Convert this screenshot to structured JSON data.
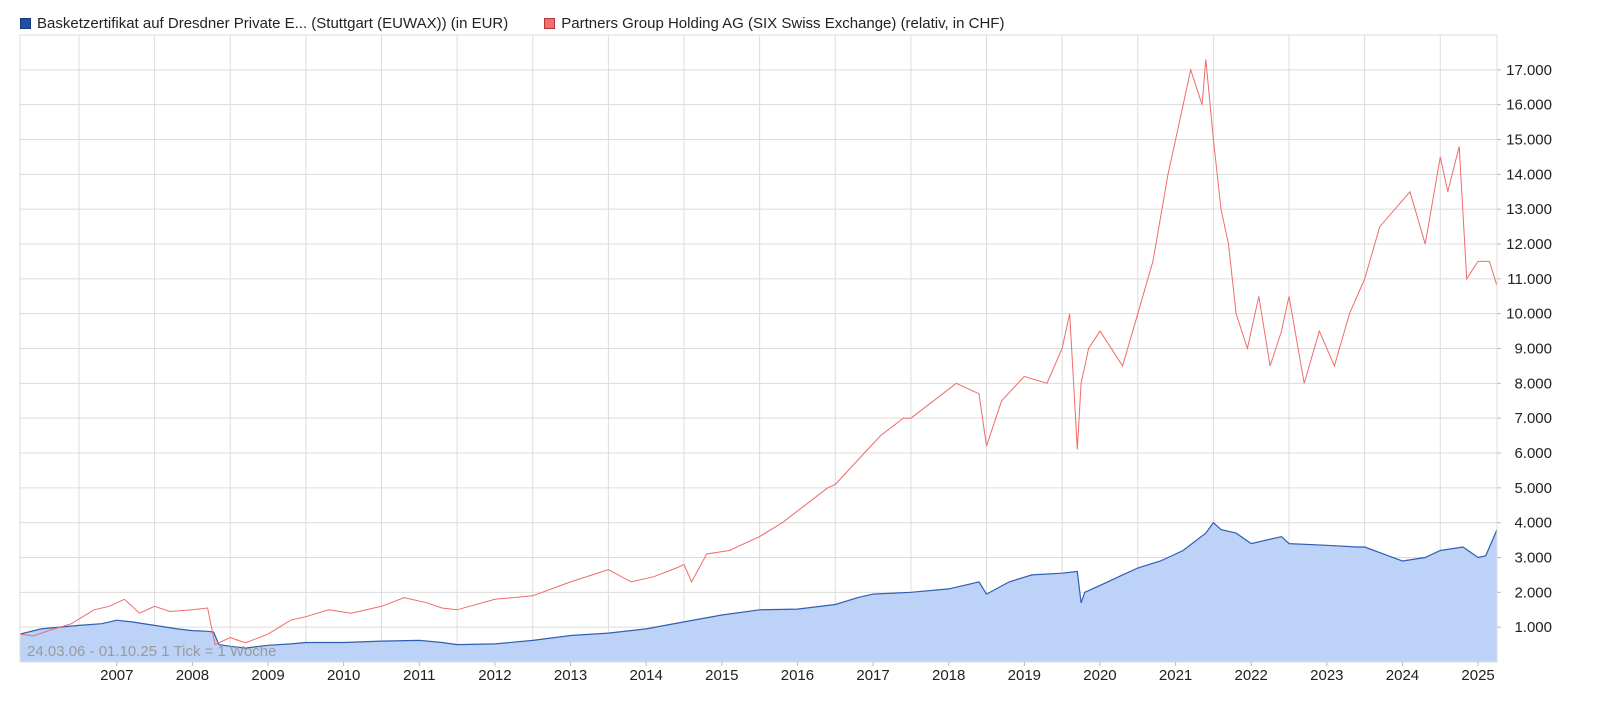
{
  "legend": {
    "series1_label": "Basketzertifikat auf Dresdner Private E... (Stuttgart (EUWAX)) (in EUR)",
    "series2_label": "Partners Group Holding AG (SIX Swiss Exchange) (relativ, in CHF)"
  },
  "range_note": "24.03.06 - 01.10.25   1 Tick = 1 Woche",
  "colors": {
    "series1_line": "#2f5fb3",
    "series1_fill": "#bcd3f7",
    "series1_swatch": "#1f4fa8",
    "series2_line": "#f06b6b",
    "series2_swatch": "#f26d6d",
    "grid": "#dcdcdc"
  },
  "chart_data": {
    "type": "area",
    "xlim": [
      2006.22,
      2025.75
    ],
    "ylim": [
      0,
      18000
    ],
    "grid": true,
    "legend_position": "top-left",
    "x_ticks": [
      "2007",
      "2008",
      "2009",
      "2010",
      "2011",
      "2012",
      "2013",
      "2014",
      "2015",
      "2016",
      "2017",
      "2018",
      "2019",
      "2020",
      "2021",
      "2022",
      "2023",
      "2024",
      "2025"
    ],
    "y_ticks": [
      "1.000",
      "2.000",
      "3.000",
      "4.000",
      "5.000",
      "6.000",
      "7.000",
      "8.000",
      "9.000",
      "10.000",
      "11.000",
      "12.000",
      "13.000",
      "14.000",
      "15.000",
      "16.000",
      "17.000"
    ],
    "series": [
      {
        "type": "area",
        "x": [
          2006.22,
          2006.5,
          2007.0,
          2007.3,
          2007.5,
          2007.7,
          2008.0,
          2008.3,
          2008.5,
          2008.7,
          2008.78,
          2008.85,
          2009.0,
          2009.2,
          2009.5,
          2009.8,
          2010.0,
          2010.5,
          2011.0,
          2011.5,
          2011.8,
          2012.0,
          2012.5,
          2013.0,
          2013.5,
          2014.0,
          2014.5,
          2015.0,
          2015.5,
          2016.0,
          2016.5,
          2017.0,
          2017.3,
          2017.5,
          2018.0,
          2018.5,
          2018.9,
          2019.0,
          2019.3,
          2019.6,
          2020.0,
          2020.2,
          2020.25,
          2020.3,
          2020.5,
          2020.8,
          2021.0,
          2021.3,
          2021.6,
          2021.9,
          2022.0,
          2022.1,
          2022.3,
          2022.5,
          2022.9,
          2023.0,
          2023.5,
          2023.9,
          2024.0,
          2024.5,
          2024.8,
          2025.0,
          2025.3,
          2025.5,
          2025.6,
          2025.75
        ],
        "values": [
          800,
          950,
          1050,
          1100,
          1200,
          1150,
          1050,
          950,
          900,
          880,
          860,
          500,
          450,
          400,
          480,
          520,
          560,
          560,
          600,
          620,
          560,
          500,
          520,
          620,
          760,
          830,
          950,
          1150,
          1350,
          1500,
          1520,
          1650,
          1850,
          1950,
          2000,
          2100,
          2300,
          1950,
          2300,
          2500,
          2550,
          2600,
          1700,
          2000,
          2200,
          2500,
          2700,
          2900,
          3200,
          3700,
          4000,
          3800,
          3700,
          3400,
          3600,
          3400,
          3350,
          3300,
          3300,
          2900,
          3000,
          3200,
          3300,
          3000,
          3050,
          3800
        ]
      },
      {
        "type": "line",
        "x": [
          2006.22,
          2006.4,
          2006.6,
          2006.9,
          2007.2,
          2007.4,
          2007.6,
          2007.8,
          2008.0,
          2008.2,
          2008.5,
          2008.7,
          2008.8,
          2009.0,
          2009.2,
          2009.5,
          2009.8,
          2010.0,
          2010.3,
          2010.6,
          2011.0,
          2011.3,
          2011.6,
          2011.8,
          2012.0,
          2012.5,
          2013.0,
          2013.5,
          2014.0,
          2014.3,
          2014.6,
          2014.9,
          2015.0,
          2015.1,
          2015.3,
          2015.6,
          2016.0,
          2016.3,
          2016.6,
          2016.9,
          2017.0,
          2017.3,
          2017.6,
          2017.9,
          2018.0,
          2018.3,
          2018.6,
          2018.9,
          2019.0,
          2019.2,
          2019.5,
          2019.8,
          2020.0,
          2020.1,
          2020.2,
          2020.25,
          2020.35,
          2020.5,
          2020.8,
          2021.0,
          2021.2,
          2021.4,
          2021.55,
          2021.7,
          2021.85,
          2021.9,
          2022.0,
          2022.1,
          2022.2,
          2022.3,
          2022.45,
          2022.6,
          2022.75,
          2022.9,
          2023.0,
          2023.2,
          2023.4,
          2023.6,
          2023.8,
          2024.0,
          2024.2,
          2024.4,
          2024.6,
          2024.8,
          2025.0,
          2025.1,
          2025.25,
          2025.35,
          2025.5,
          2025.65,
          2025.75
        ],
        "values": [
          800,
          750,
          900,
          1100,
          1500,
          1600,
          1800,
          1400,
          1600,
          1450,
          1500,
          1550,
          500,
          700,
          550,
          800,
          1200,
          1300,
          1500,
          1400,
          1600,
          1850,
          1700,
          1550,
          1500,
          1800,
          1900,
          2300,
          2650,
          2300,
          2450,
          2700,
          2800,
          2300,
          3100,
          3200,
          3600,
          4000,
          4500,
          5000,
          5100,
          5800,
          6500,
          7000,
          7000,
          7500,
          8000,
          7700,
          6200,
          7500,
          8200,
          8000,
          9000,
          10000,
          6100,
          8000,
          9000,
          9500,
          8500,
          10000,
          11500,
          14000,
          15500,
          17000,
          16000,
          17300,
          15000,
          13000,
          12000,
          10000,
          9000,
          10500,
          8500,
          9500,
          10500,
          8000,
          9500,
          8500,
          10000,
          11000,
          12500,
          13000,
          13500,
          12000,
          14500,
          13500,
          14800,
          11000,
          11500,
          11500,
          10800
        ]
      }
    ]
  }
}
